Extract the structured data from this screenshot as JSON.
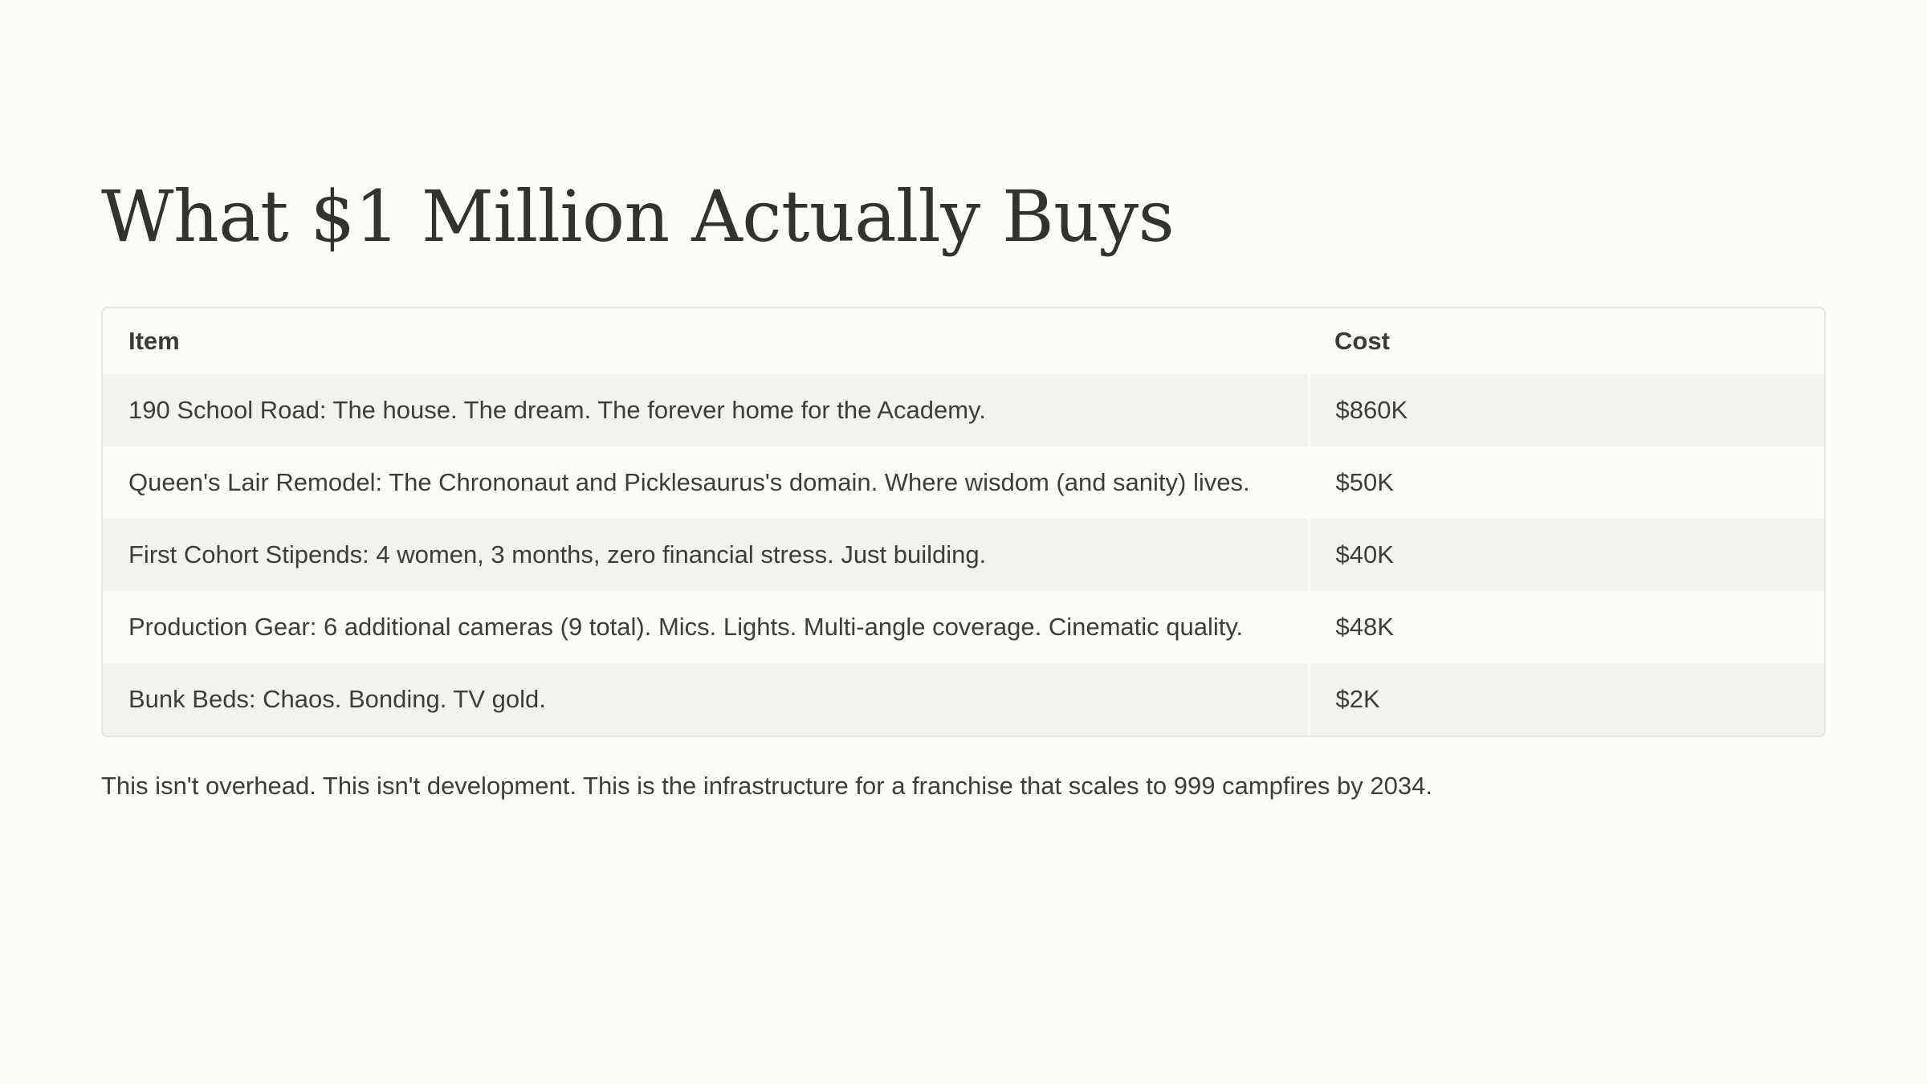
{
  "slide": {
    "title": "What $1 Million Actually Buys",
    "footnote": "This isn't overhead. This isn't development. This is the infrastructure for a franchise that scales to 999 campfires by 2034."
  },
  "table": {
    "headers": [
      "Item",
      "Cost"
    ],
    "rows": [
      {
        "item": "190 School Road: The house. The dream. The forever home for the Academy.",
        "cost": "$860K"
      },
      {
        "item": "Queen's Lair Remodel: The Chrononaut and Picklesaurus's domain. Where wisdom (and sanity) lives.",
        "cost": "$50K"
      },
      {
        "item": "First Cohort Stipends: 4 women, 3 months, zero financial stress. Just building.",
        "cost": "$40K"
      },
      {
        "item": "Production Gear: 6 additional cameras (9 total). Mics. Lights. Multi-angle coverage. Cinematic quality.",
        "cost": "$48K"
      },
      {
        "item": "Bunk Beds: Chaos. Bonding. TV gold.",
        "cost": "$2K"
      }
    ]
  }
}
